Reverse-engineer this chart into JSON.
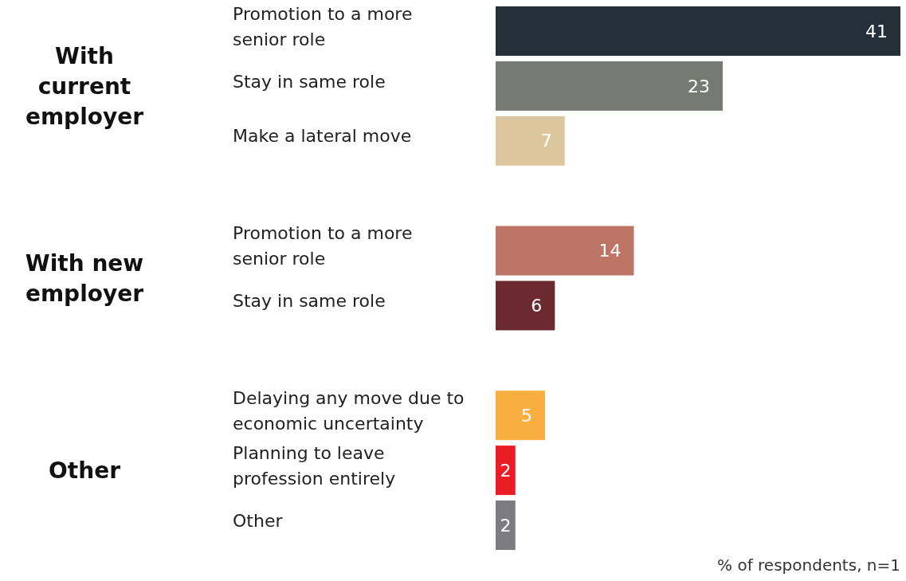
{
  "chart_data": {
    "type": "bar",
    "orientation": "horizontal",
    "data_labels": true,
    "categories": [
      "Promotion to a more senior role",
      "Stay in same role",
      "Make a lateral move",
      null,
      "Promotion to a more senior role",
      "Stay in same role",
      null,
      "Delaying any move due to economic uncertainty",
      "Planning to leave profession entirely",
      "Other"
    ],
    "values": [
      41,
      23,
      7,
      null,
      14,
      6,
      null,
      5,
      2,
      2
    ],
    "colors": [
      "#252f38",
      "#757b73",
      "#dcc69d",
      null,
      "#bf7565",
      "#6a2a30",
      null,
      "#f9ae40",
      "#ec1c24",
      "#7d7d80"
    ],
    "annotations": [
      "With current employer",
      "With new employer",
      "Other",
      "% of respondents, n=1"
    ]
  }
}
